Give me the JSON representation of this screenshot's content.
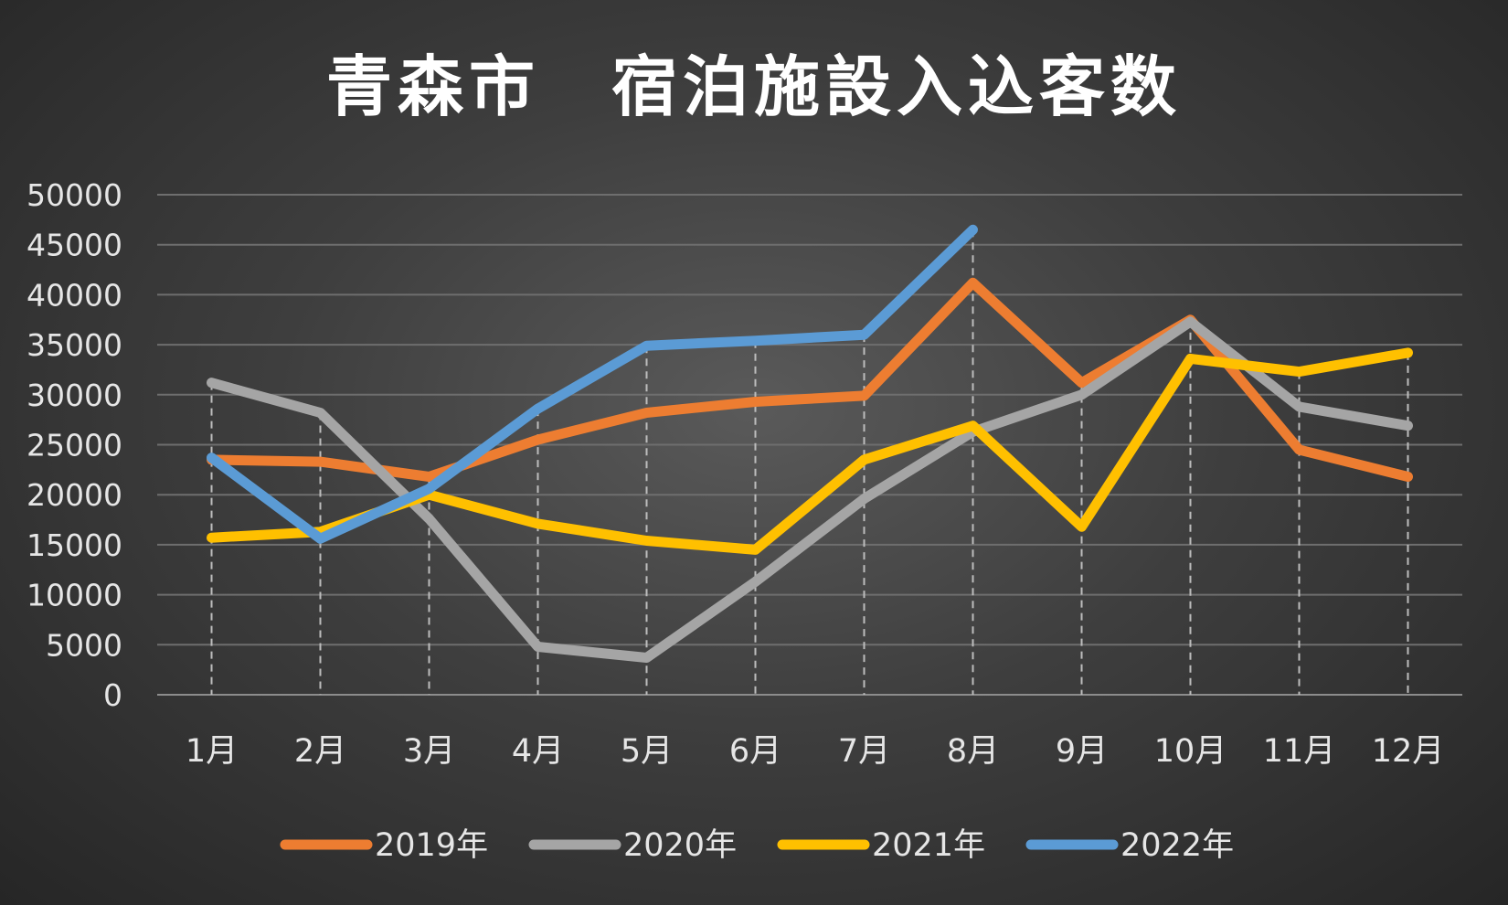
{
  "chart_data": {
    "type": "line",
    "title": "青森市　宿泊施設入込客数",
    "xlabel": "",
    "ylabel": "",
    "categories": [
      "1月",
      "2月",
      "3月",
      "4月",
      "5月",
      "6月",
      "7月",
      "8月",
      "9月",
      "10月",
      "11月",
      "12月"
    ],
    "ylim": [
      0,
      50000
    ],
    "yticks": [
      0,
      5000,
      10000,
      15000,
      20000,
      25000,
      30000,
      35000,
      40000,
      45000,
      50000
    ],
    "grid": true,
    "drop_lines": true,
    "legend_position": "bottom",
    "series": [
      {
        "name": "2019年",
        "color": "#ED7D31",
        "values": [
          23500,
          23300,
          21800,
          25500,
          28200,
          29300,
          29900,
          41200,
          31200,
          37500,
          24500,
          21800
        ]
      },
      {
        "name": "2020年",
        "color": "#A5A5A5",
        "values": [
          31200,
          28200,
          17600,
          4800,
          3700,
          11300,
          19600,
          26300,
          30000,
          37300,
          28800,
          26900
        ]
      },
      {
        "name": "2021年",
        "color": "#FFC000",
        "values": [
          15700,
          16300,
          20000,
          17100,
          15400,
          14500,
          23500,
          26900,
          16800,
          33600,
          32300,
          34200
        ]
      },
      {
        "name": "2022年",
        "color": "#5B9BD5",
        "values": [
          23700,
          15600,
          20600,
          28600,
          34900,
          35400,
          36000,
          46500,
          null,
          null,
          null,
          null
        ]
      }
    ]
  }
}
